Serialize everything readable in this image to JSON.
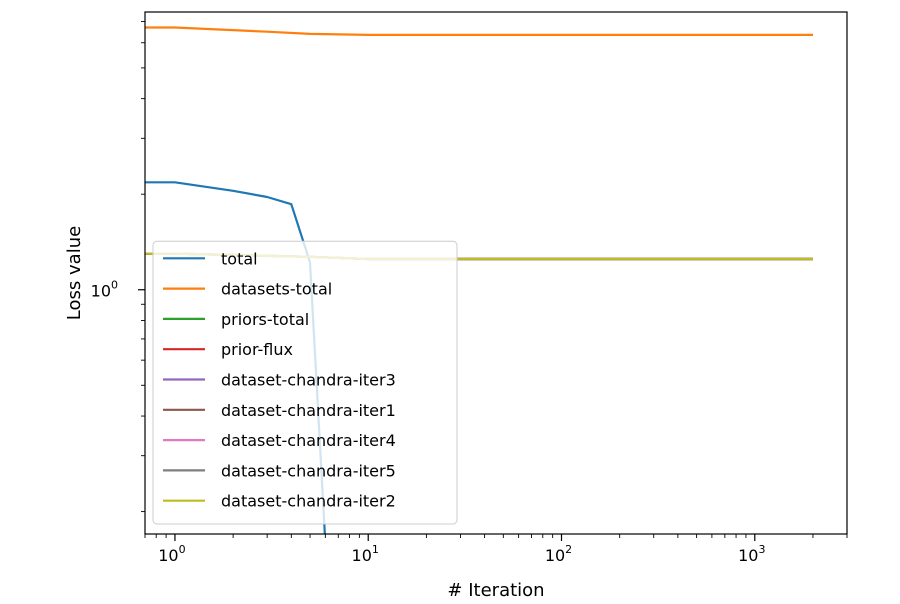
{
  "chart_data": {
    "type": "line",
    "title": "",
    "xlabel": "# Iteration",
    "ylabel": "Loss value",
    "xscale": "log",
    "yscale": "log",
    "xlim": [
      0.7,
      3000
    ],
    "ylim": [
      0.17,
      7.5
    ],
    "x_major_ticks": [
      {
        "value": 1,
        "base": "10",
        "exp": "0"
      },
      {
        "value": 10,
        "base": "10",
        "exp": "1"
      },
      {
        "value": 100,
        "base": "10",
        "exp": "2"
      },
      {
        "value": 1000,
        "base": "10",
        "exp": "3"
      }
    ],
    "y_major_ticks": [
      {
        "value": 1,
        "base": "10",
        "exp": "0"
      }
    ],
    "grid": false,
    "legend_position": "lower-left",
    "series": [
      {
        "name": "total",
        "color": "#1f77b4",
        "x": [
          0.7,
          1,
          2,
          3,
          4,
          5,
          6
        ],
        "y": [
          2.18,
          2.18,
          2.05,
          1.96,
          1.86,
          1.22,
          0.16
        ]
      },
      {
        "name": "datasets-total",
        "color": "#ff7f0e",
        "x": [
          0.7,
          1,
          3,
          5,
          10,
          100,
          2000
        ],
        "y": [
          6.7,
          6.7,
          6.5,
          6.4,
          6.35,
          6.35,
          6.35
        ]
      },
      {
        "name": "priors-total",
        "color": "#2ca02c",
        "x": [
          0.7,
          1,
          5,
          10,
          2000
        ],
        "y": [
          1.3,
          1.3,
          1.27,
          1.25,
          1.25
        ]
      },
      {
        "name": "prior-flux",
        "color": "#d62728",
        "x": [
          0.7,
          1,
          5,
          10,
          2000
        ],
        "y": [
          1.3,
          1.3,
          1.27,
          1.25,
          1.25
        ]
      },
      {
        "name": "dataset-chandra-iter3",
        "color": "#9467bd",
        "x": [
          0.7,
          1,
          5,
          10,
          2000
        ],
        "y": [
          1.3,
          1.3,
          1.27,
          1.25,
          1.25
        ]
      },
      {
        "name": "dataset-chandra-iter1",
        "color": "#8c564b",
        "x": [
          0.7,
          1,
          5,
          10,
          2000
        ],
        "y": [
          1.3,
          1.3,
          1.27,
          1.25,
          1.25
        ]
      },
      {
        "name": "dataset-chandra-iter4",
        "color": "#e377c2",
        "x": [
          0.7,
          1,
          5,
          10,
          2000
        ],
        "y": [
          1.3,
          1.3,
          1.27,
          1.25,
          1.25
        ]
      },
      {
        "name": "dataset-chandra-iter5",
        "color": "#7f7f7f",
        "x": [
          0.7,
          1,
          5,
          10,
          2000
        ],
        "y": [
          1.3,
          1.3,
          1.27,
          1.25,
          1.25
        ]
      },
      {
        "name": "dataset-chandra-iter2",
        "color": "#bcbd22",
        "x": [
          0.7,
          1,
          5,
          10,
          2000
        ],
        "y": [
          1.3,
          1.3,
          1.27,
          1.25,
          1.25
        ]
      }
    ]
  }
}
